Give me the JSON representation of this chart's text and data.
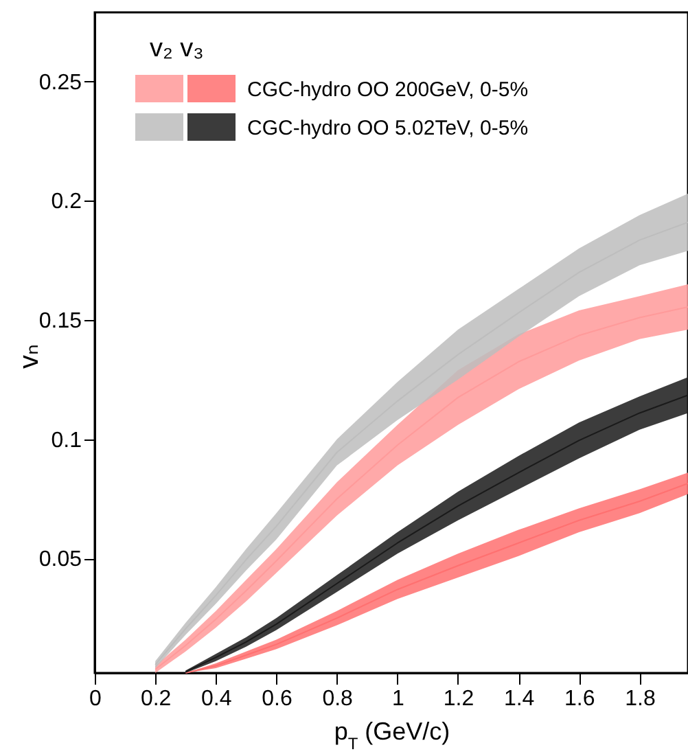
{
  "chart_data": {
    "type": "line",
    "xlabel": "p$_{T}$ (GeV/c)",
    "ylabel": "vₙ",
    "legend_title": "v₂  v₃",
    "legend": "top left",
    "grid": false,
    "xlim": [
      0,
      1.96
    ],
    "ylim": [
      0.002,
      0.279
    ],
    "xticks": [
      0,
      0.2,
      0.4,
      0.6,
      0.8,
      1,
      1.2,
      1.4,
      1.6,
      1.8
    ],
    "yticks": [
      0.05,
      0.1,
      0.15,
      0.2,
      0.25
    ],
    "series": [
      {
        "color": "#ff9a9a",
        "x": [
          0.2,
          0.3,
          0.4,
          0.5,
          0.6,
          0.8,
          1.0,
          1.2,
          1.4,
          1.6,
          1.8,
          1.96
        ],
        "values": [
          0.0035,
          0.0135,
          0.0245,
          0.0365,
          0.049,
          0.075,
          0.0975,
          0.1175,
          0.1325,
          0.1435,
          0.151,
          0.1555
        ],
        "lower": [
          0.002,
          0.011,
          0.021,
          0.032,
          0.044,
          0.068,
          0.089,
          0.106,
          0.121,
          0.133,
          0.142,
          0.146
        ],
        "upper": [
          0.005,
          0.016,
          0.028,
          0.041,
          0.054,
          0.082,
          0.106,
          0.129,
          0.144,
          0.154,
          0.16,
          0.165
        ]
      },
      {
        "color": "#bdbdbd",
        "x": [
          0.2,
          0.3,
          0.4,
          0.5,
          0.6,
          0.8,
          1.0,
          1.2,
          1.4,
          1.6,
          1.8,
          1.96
        ],
        "values": [
          0.0055,
          0.0205,
          0.0345,
          0.0495,
          0.0635,
          0.0945,
          0.116,
          0.1355,
          0.153,
          0.17,
          0.1835,
          0.191
        ],
        "lower": [
          0.004,
          0.018,
          0.031,
          0.045,
          0.058,
          0.089,
          0.108,
          0.125,
          0.143,
          0.16,
          0.173,
          0.179
        ],
        "upper": [
          0.007,
          0.023,
          0.038,
          0.054,
          0.069,
          0.1,
          0.124,
          0.146,
          0.163,
          0.18,
          0.194,
          0.203
        ]
      },
      {
        "name": "CGC-hydro OO 200GeV, 0-5%",
        "color": "#ff7070",
        "x": [
          0.3,
          0.4,
          0.5,
          0.6,
          0.8,
          1.0,
          1.2,
          1.4,
          1.6,
          1.8,
          1.96
        ],
        "values": [
          0.002,
          0.005,
          0.0095,
          0.014,
          0.025,
          0.037,
          0.047,
          0.0565,
          0.066,
          0.074,
          0.0815
        ],
        "lower": [
          0.002,
          0.004,
          0.008,
          0.012,
          0.022,
          0.033,
          0.042,
          0.051,
          0.061,
          0.069,
          0.077
        ],
        "upper": [
          0.002,
          0.006,
          0.011,
          0.016,
          0.028,
          0.041,
          0.052,
          0.062,
          0.071,
          0.079,
          0.086
        ]
      },
      {
        "name": "CGC-hydro OO 5.02TeV, 0-5%",
        "color": "#1a1a1a",
        "x": [
          0.3,
          0.4,
          0.5,
          0.6,
          0.8,
          1.0,
          1.2,
          1.4,
          1.6,
          1.8,
          1.96
        ],
        "values": [
          0.0025,
          0.0085,
          0.015,
          0.0225,
          0.0395,
          0.0565,
          0.072,
          0.086,
          0.0995,
          0.111,
          0.1185
        ],
        "lower": [
          0.002,
          0.007,
          0.013,
          0.02,
          0.036,
          0.052,
          0.066,
          0.079,
          0.092,
          0.104,
          0.111
        ],
        "upper": [
          0.003,
          0.01,
          0.017,
          0.025,
          0.043,
          0.061,
          0.078,
          0.093,
          0.107,
          0.118,
          0.126
        ]
      }
    ]
  }
}
